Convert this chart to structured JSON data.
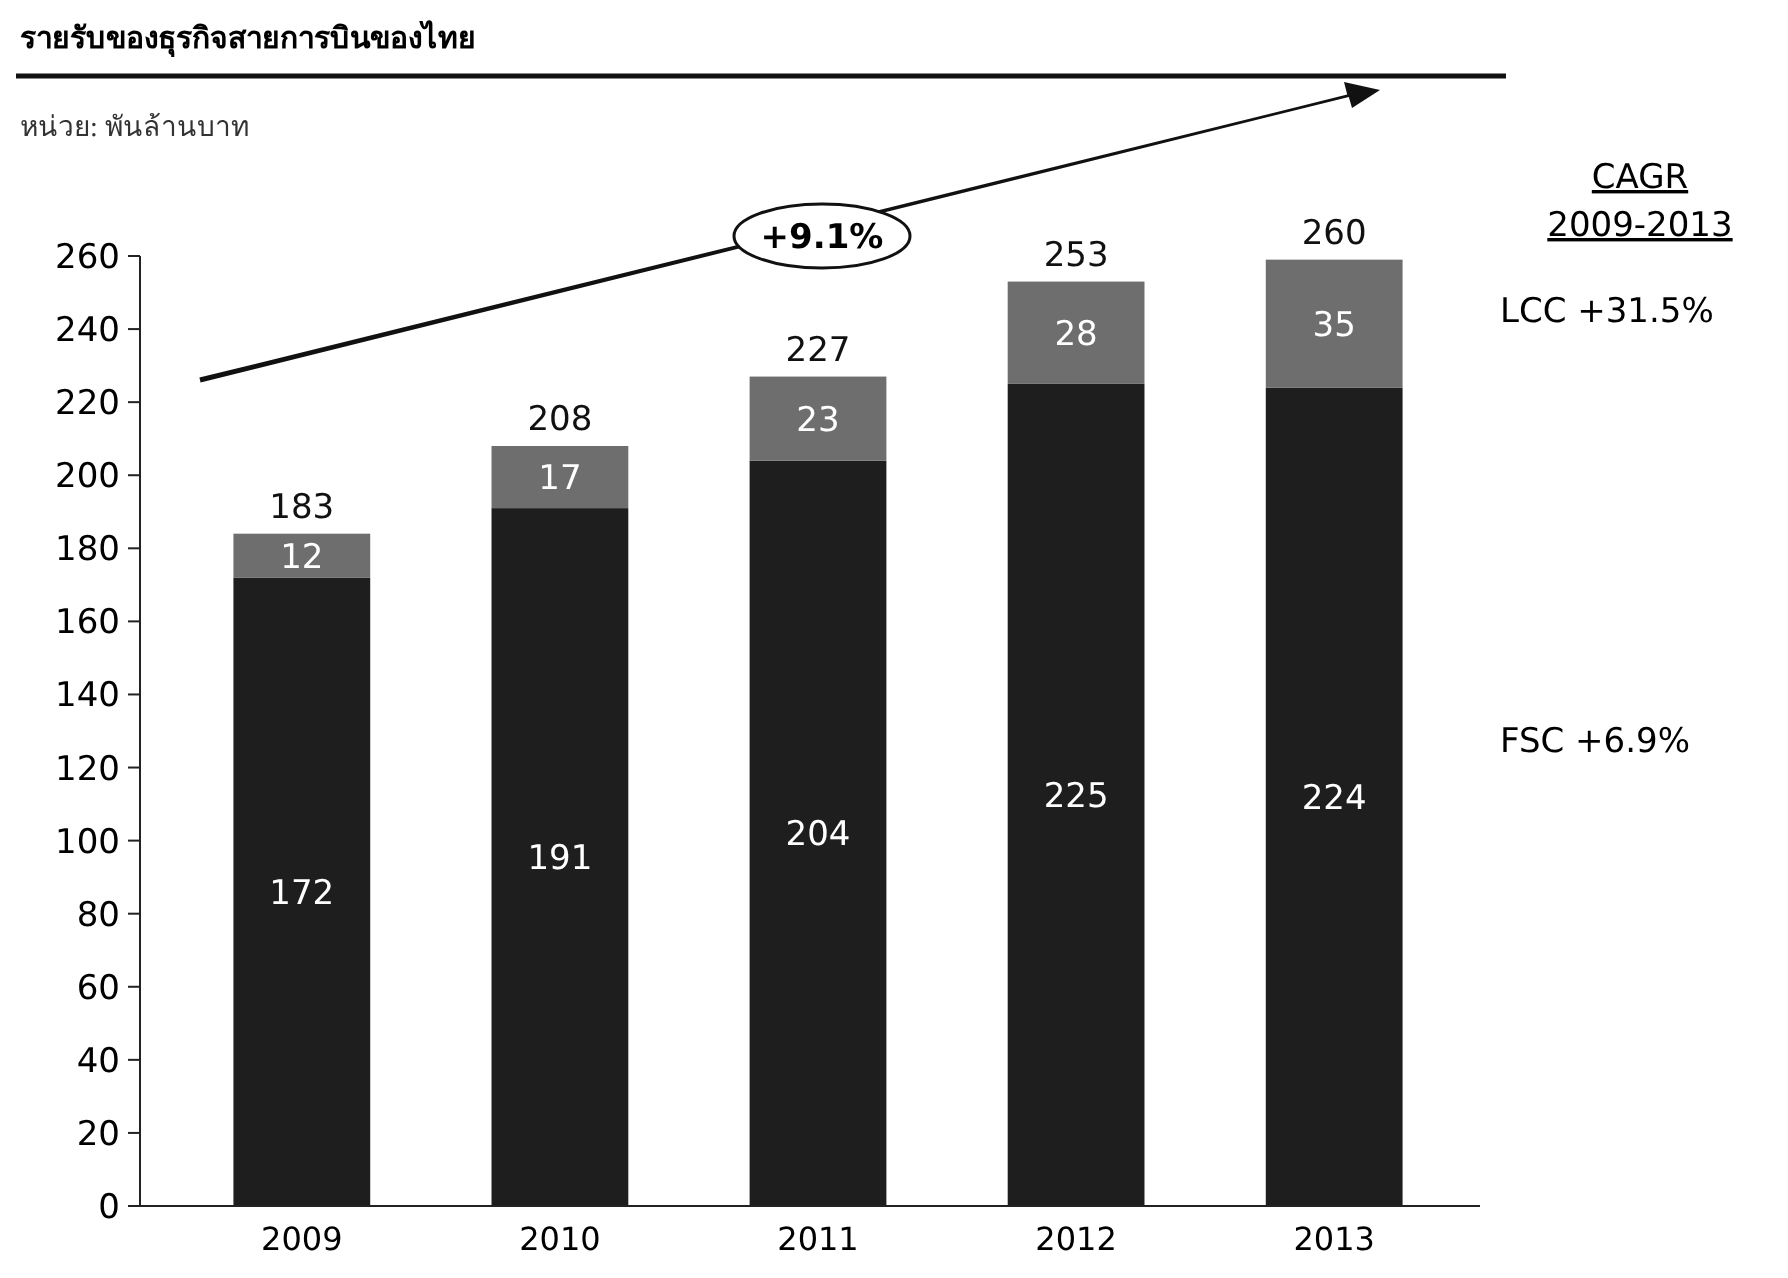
{
  "chart_data": {
    "type": "bar",
    "title": "รายรับของธุรกิจสายการบินของไทย",
    "subtitle": "หน่วย: พันล้านบาท",
    "categories": [
      "2009",
      "2010",
      "2011",
      "2012",
      "2013"
    ],
    "stacked": true,
    "series": [
      {
        "color": "#1e1e1e",
        "values": [
          172,
          191,
          204,
          225,
          224
        ]
      },
      {
        "color": "#6e6e6e",
        "values": [
          12,
          17,
          23,
          28,
          35
        ]
      }
    ],
    "totals": [
      "183",
      "208",
      "227",
      "253",
      "260"
    ],
    "data_labels": true,
    "ylim": [
      0,
      260
    ],
    "yticks": [
      0,
      20,
      40,
      60,
      80,
      100,
      120,
      140,
      160,
      180,
      200,
      220,
      240,
      260
    ],
    "grid": false,
    "annotations": [
      "+9.1%",
      "CAGR 2009-2013",
      "LCC +31.5%",
      "FSC +6.9%"
    ]
  }
}
